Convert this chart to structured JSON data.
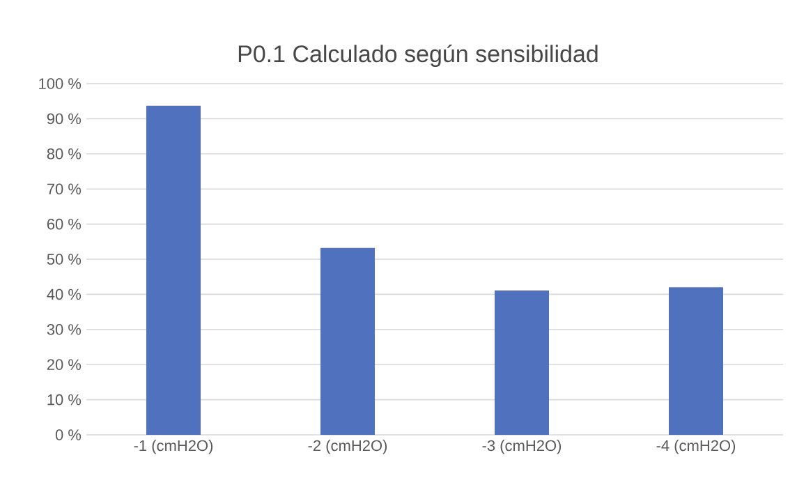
{
  "chart_data": {
    "type": "bar",
    "title": "P0.1 Calculado según sensibilidad",
    "categories": [
      "-1 (cmH2O)",
      "-2 (cmH2O)",
      "-3 (cmH2O)",
      "-4 (cmH2O)"
    ],
    "values": [
      93.7,
      53.2,
      41.1,
      42.0
    ],
    "color": "#4f71be",
    "ylim": [
      0,
      100
    ],
    "yticks": [
      {
        "value": 0,
        "label": "0 %"
      },
      {
        "value": 10,
        "label": "10 %"
      },
      {
        "value": 20,
        "label": "20 %"
      },
      {
        "value": 30,
        "label": "30 %"
      },
      {
        "value": 40,
        "label": "40 %"
      },
      {
        "value": 50,
        "label": "50 %"
      },
      {
        "value": 60,
        "label": "60 %"
      },
      {
        "value": 70,
        "label": "70 %"
      },
      {
        "value": 80,
        "label": "80 %"
      },
      {
        "value": 90,
        "label": "90 %"
      },
      {
        "value": 100,
        "label": "100 %"
      }
    ],
    "grid": "y"
  }
}
